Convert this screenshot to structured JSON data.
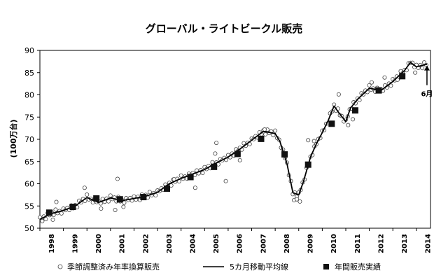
{
  "chart_data": {
    "type": "line",
    "title": "グローバル・ライトビークル販売",
    "ylabel": "(100万台)",
    "xlabel": "",
    "ylim": [
      50,
      90
    ],
    "yticks": [
      50,
      55,
      60,
      65,
      70,
      75,
      80,
      85,
      90
    ],
    "xlim": [
      1998,
      2014.6
    ],
    "xticks": [
      "1998",
      "1999",
      "2000",
      "2001",
      "2002",
      "2003",
      "2004",
      "2005",
      "2006",
      "2007",
      "2008",
      "2009",
      "2010",
      "2011",
      "2012",
      "2013",
      "2014"
    ],
    "grid": false,
    "legend_position": "bottom",
    "annotation": {
      "text": "6月",
      "x": 2014.45,
      "y": 86.9
    },
    "series": [
      {
        "name": "季節調整済み年率換算販売",
        "style": "open-circle",
        "monthly_source": true,
        "base_points": [
          [
            1998.0,
            52.0
          ],
          [
            1998.5,
            53.3
          ],
          [
            1999.0,
            54.0
          ],
          [
            1999.5,
            55.0
          ],
          [
            2000.0,
            56.9
          ],
          [
            2000.5,
            55.8
          ],
          [
            2001.0,
            56.8
          ],
          [
            2001.5,
            56.2
          ],
          [
            2002.0,
            56.7
          ],
          [
            2002.5,
            57.2
          ],
          [
            2003.0,
            58.1
          ],
          [
            2003.5,
            60.0
          ],
          [
            2004.0,
            61.2
          ],
          [
            2004.5,
            62.2
          ],
          [
            2005.0,
            63.2
          ],
          [
            2005.5,
            64.7
          ],
          [
            2006.0,
            66.0
          ],
          [
            2006.5,
            67.8
          ],
          [
            2007.0,
            69.8
          ],
          [
            2007.5,
            71.8
          ],
          [
            2008.0,
            71.3
          ],
          [
            2008.2,
            69.5
          ],
          [
            2008.5,
            64.5
          ],
          [
            2008.75,
            58.0
          ],
          [
            2009.0,
            57.5
          ],
          [
            2009.2,
            60.5
          ],
          [
            2009.5,
            66.0
          ],
          [
            2009.75,
            69.0
          ],
          [
            2010.0,
            71.5
          ],
          [
            2010.25,
            74.2
          ],
          [
            2010.5,
            77.5
          ],
          [
            2010.7,
            76.0
          ],
          [
            2011.0,
            74.0
          ],
          [
            2011.2,
            77.0
          ],
          [
            2011.5,
            79.0
          ],
          [
            2012.0,
            81.5
          ],
          [
            2012.5,
            81.0
          ],
          [
            2013.0,
            83.0
          ],
          [
            2013.5,
            85.5
          ],
          [
            2013.75,
            87.3
          ],
          [
            2014.0,
            86.3
          ],
          [
            2014.45,
            86.9
          ]
        ]
      },
      {
        "name": "5カ月移動平均線",
        "style": "line",
        "points": [
          [
            1998.0,
            52.0
          ],
          [
            1998.5,
            53.3
          ],
          [
            1999.0,
            54.0
          ],
          [
            1999.5,
            55.0
          ],
          [
            2000.0,
            56.9
          ],
          [
            2000.5,
            55.8
          ],
          [
            2001.0,
            56.8
          ],
          [
            2001.5,
            56.2
          ],
          [
            2002.0,
            56.7
          ],
          [
            2002.5,
            57.2
          ],
          [
            2003.0,
            58.1
          ],
          [
            2003.5,
            60.0
          ],
          [
            2004.0,
            61.2
          ],
          [
            2004.5,
            62.2
          ],
          [
            2005.0,
            63.2
          ],
          [
            2005.5,
            64.7
          ],
          [
            2006.0,
            66.0
          ],
          [
            2006.5,
            67.8
          ],
          [
            2007.0,
            69.8
          ],
          [
            2007.5,
            71.8
          ],
          [
            2008.0,
            71.3
          ],
          [
            2008.2,
            69.5
          ],
          [
            2008.5,
            64.5
          ],
          [
            2008.75,
            58.0
          ],
          [
            2009.0,
            57.5
          ],
          [
            2009.2,
            60.5
          ],
          [
            2009.5,
            66.0
          ],
          [
            2009.75,
            69.0
          ],
          [
            2010.0,
            71.5
          ],
          [
            2010.25,
            74.2
          ],
          [
            2010.5,
            77.5
          ],
          [
            2010.7,
            76.0
          ],
          [
            2011.0,
            74.0
          ],
          [
            2011.2,
            77.0
          ],
          [
            2011.5,
            79.0
          ],
          [
            2012.0,
            81.5
          ],
          [
            2012.5,
            81.0
          ],
          [
            2013.0,
            83.0
          ],
          [
            2013.5,
            85.5
          ],
          [
            2013.75,
            87.3
          ],
          [
            2014.0,
            86.3
          ],
          [
            2014.45,
            86.9
          ]
        ]
      },
      {
        "name": "年間販売実績",
        "style": "filled-square",
        "points": [
          [
            1998.4,
            53.5
          ],
          [
            1999.4,
            54.8
          ],
          [
            2000.4,
            56.7
          ],
          [
            2001.4,
            56.5
          ],
          [
            2002.4,
            57.0
          ],
          [
            2003.4,
            58.9
          ],
          [
            2004.4,
            61.5
          ],
          [
            2005.4,
            63.8
          ],
          [
            2006.4,
            66.7
          ],
          [
            2007.4,
            70.1
          ],
          [
            2008.4,
            66.6
          ],
          [
            2009.4,
            64.3
          ],
          [
            2010.4,
            73.5
          ],
          [
            2011.4,
            76.5
          ],
          [
            2012.4,
            81.0
          ],
          [
            2013.4,
            84.2
          ]
        ]
      }
    ],
    "outliers": [
      [
        1998.1,
        51.6
      ],
      [
        1998.55,
        51.9
      ],
      [
        1998.7,
        55.9
      ],
      [
        1999.9,
        59.1
      ],
      [
        2000.6,
        54.4
      ],
      [
        2001.2,
        54.1
      ],
      [
        2001.3,
        61.1
      ],
      [
        2001.55,
        54.8
      ],
      [
        2003.7,
        61.0
      ],
      [
        2004.6,
        59.1
      ],
      [
        2005.5,
        69.2
      ],
      [
        2005.45,
        66.8
      ],
      [
        2005.9,
        60.6
      ],
      [
        2006.5,
        65.3
      ],
      [
        2007.55,
        72.2
      ],
      [
        2008.8,
        56.3
      ],
      [
        2008.92,
        56.5
      ],
      [
        2009.05,
        56.0
      ],
      [
        2009.4,
        69.8
      ],
      [
        2009.65,
        69.6
      ],
      [
        2010.7,
        80.1
      ],
      [
        2011.1,
        73.2
      ],
      [
        2011.3,
        74.5
      ],
      [
        2012.1,
        82.8
      ],
      [
        2012.65,
        83.9
      ],
      [
        2013.2,
        83.4
      ],
      [
        2013.95,
        85.0
      ]
    ]
  }
}
